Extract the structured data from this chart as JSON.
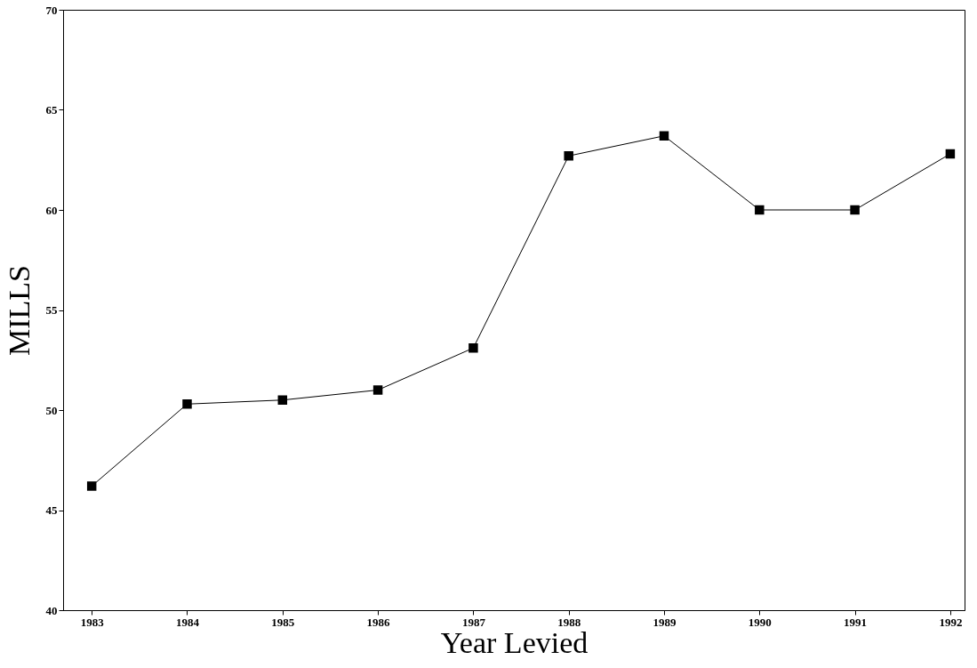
{
  "chart_data": {
    "type": "line",
    "xlabel": "Year Levied",
    "ylabel": "MILLS",
    "x": [
      1983,
      1984,
      1985,
      1986,
      1987,
      1988,
      1989,
      1990,
      1991,
      1992
    ],
    "series": [
      {
        "color": "#000000",
        "values": [
          46.2,
          50.3,
          50.5,
          51.0,
          53.1,
          62.7,
          63.7,
          60.0,
          60.0,
          62.8
        ]
      }
    ],
    "xlim": [
      1982.7,
      1992.15
    ],
    "xticks": [
      1983,
      1984,
      1985,
      1986,
      1987,
      1988,
      1989,
      1990,
      1991,
      1992
    ],
    "ylim": [
      40,
      70
    ],
    "yticks": [
      40,
      45,
      50,
      55,
      60,
      65,
      70
    ],
    "grid": false,
    "marker": "square",
    "line_style": "solid"
  }
}
